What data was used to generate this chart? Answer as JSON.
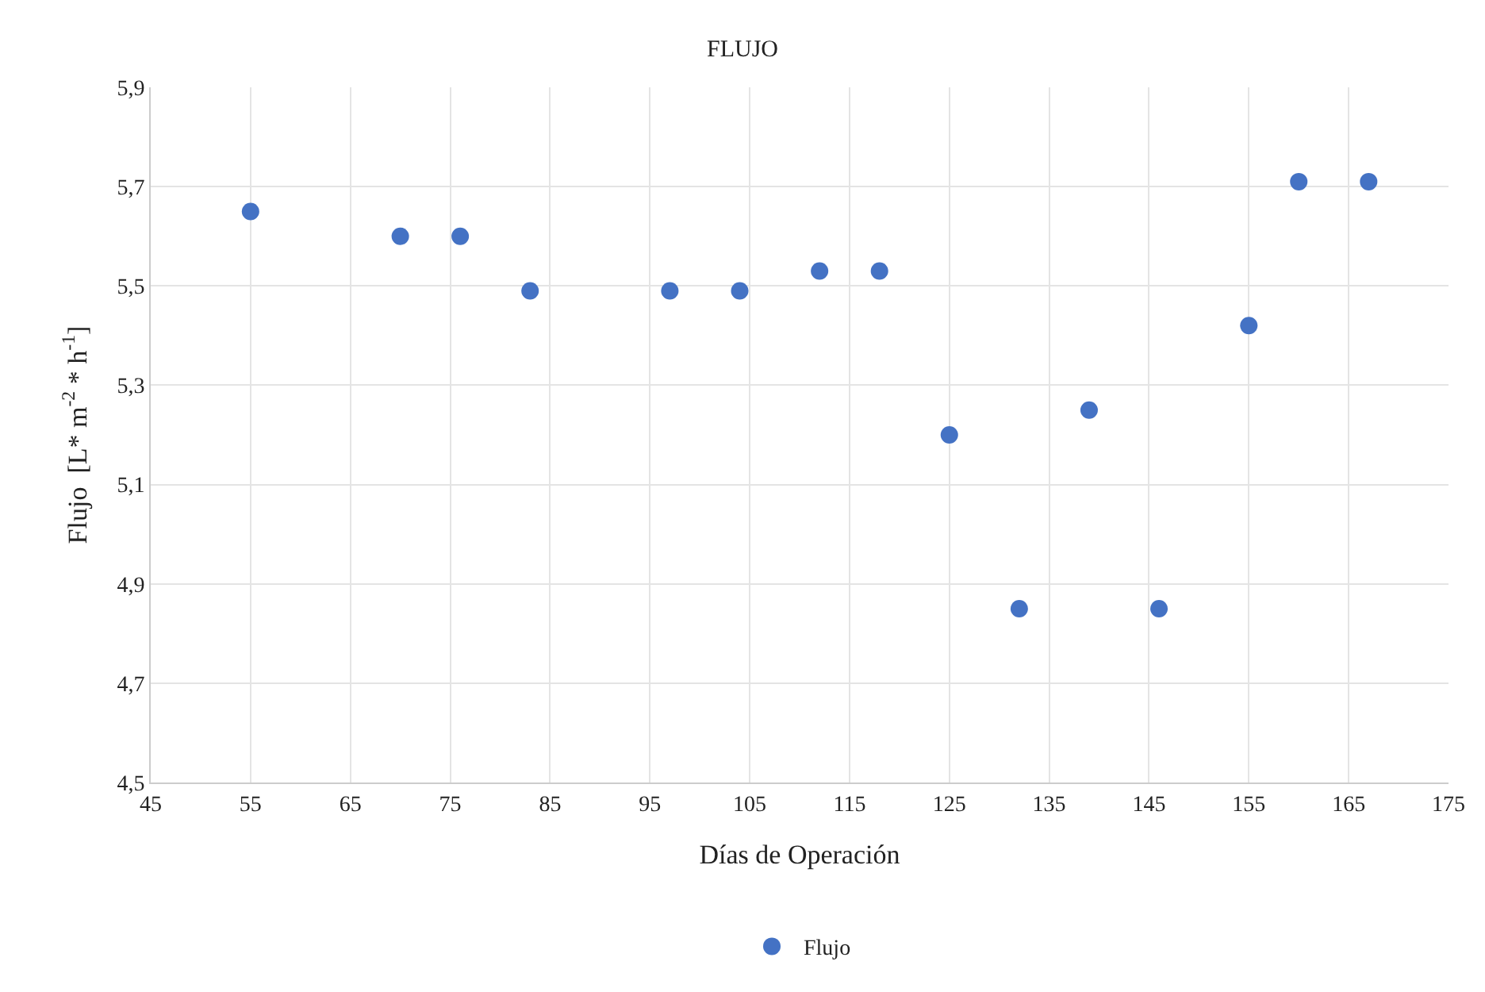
{
  "chart_data": {
    "type": "scatter",
    "title": "FLUJO",
    "xlabel": "Días de Operación",
    "ylabel": "Flujo  [L* m$^{-2}$ * h$^{-1}$]",
    "series": [
      {
        "name": "Flujo",
        "color": "#4472c4",
        "x": [
          55,
          70,
          76,
          83,
          97,
          104,
          112,
          118,
          125,
          132,
          139,
          146,
          155,
          160,
          167
        ],
        "values": [
          5.65,
          5.6,
          5.6,
          5.49,
          5.49,
          5.49,
          5.53,
          5.53,
          5.2,
          4.85,
          5.25,
          4.85,
          5.42,
          5.71,
          5.71
        ]
      }
    ],
    "xlim": [
      45,
      175
    ],
    "xticks": [
      45,
      55,
      65,
      75,
      85,
      95,
      105,
      115,
      125,
      135,
      145,
      155,
      165,
      175
    ],
    "ylim": [
      4.5,
      5.9
    ],
    "yticks": [
      {
        "value": 4.5,
        "label": "4,5"
      },
      {
        "value": 4.7,
        "label": "4,7"
      },
      {
        "value": 4.9,
        "label": "4,9"
      },
      {
        "value": 5.1,
        "label": "5,1"
      },
      {
        "value": 5.3,
        "label": "5,3"
      },
      {
        "value": 5.5,
        "label": "5,5"
      },
      {
        "value": 5.7,
        "label": "5,7"
      },
      {
        "value": 5.9,
        "label": "5,9"
      }
    ],
    "grid": true,
    "legend": "bottom",
    "marker": "circle"
  }
}
